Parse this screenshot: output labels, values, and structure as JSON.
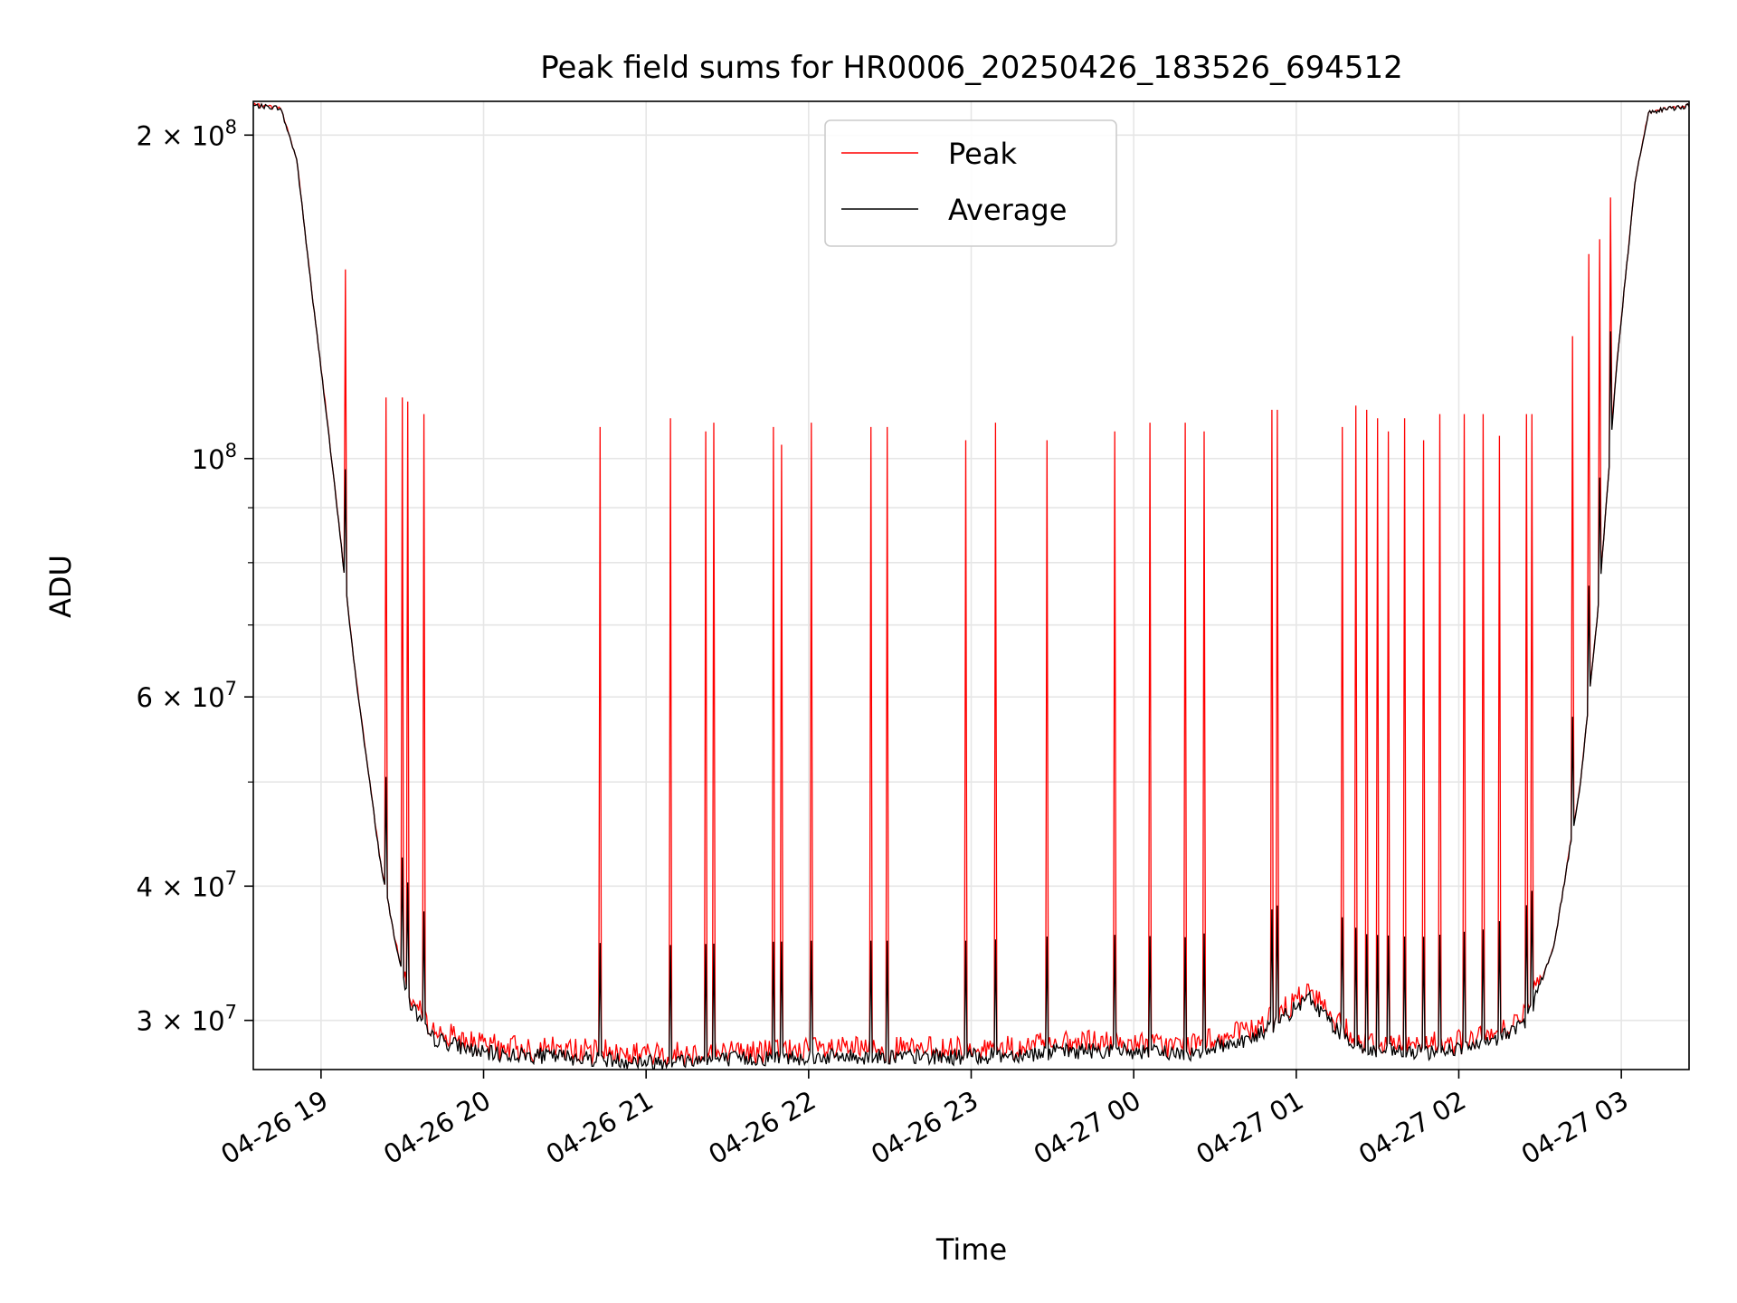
{
  "chart_data": {
    "type": "line",
    "title": "Peak field sums for HR0006_20250426_183526_694512",
    "xlabel": "Time",
    "ylabel": "ADU",
    "yscale": "log",
    "xlim": [
      "2025-04-26 18:35",
      "2025-04-27 03:25"
    ],
    "ylim": [
      27000000,
      215000000
    ],
    "grid": true,
    "legend_position": "top-center",
    "x_ticks": [
      {
        "t": "2025-04-26 19:00",
        "label": "04-26 19"
      },
      {
        "t": "2025-04-26 20:00",
        "label": "04-26 20"
      },
      {
        "t": "2025-04-26 21:00",
        "label": "04-26 21"
      },
      {
        "t": "2025-04-26 22:00",
        "label": "04-26 22"
      },
      {
        "t": "2025-04-26 23:00",
        "label": "04-26 23"
      },
      {
        "t": "2025-04-27 00:00",
        "label": "04-27 00"
      },
      {
        "t": "2025-04-27 01:00",
        "label": "04-27 01"
      },
      {
        "t": "2025-04-27 02:00",
        "label": "04-27 02"
      },
      {
        "t": "2025-04-27 03:00",
        "label": "04-27 03"
      }
    ],
    "y_ticks": [
      {
        "value": 30000000,
        "base": "3 × 10",
        "exp": "7"
      },
      {
        "value": 40000000,
        "base": "4 × 10",
        "exp": "7"
      },
      {
        "value": 60000000,
        "base": "6 × 10",
        "exp": "7"
      },
      {
        "value": 100000000,
        "base": "10",
        "exp": "8"
      },
      {
        "value": 200000000,
        "base": "2 × 10",
        "exp": "8"
      }
    ],
    "y_minor_ticks": [
      50000000,
      70000000,
      80000000,
      90000000
    ],
    "series": [
      {
        "name": "Peak",
        "color": "#ff0000"
      },
      {
        "name": "Average",
        "color": "#000000"
      }
    ],
    "baseline": [
      [
        "2025-04-26 18:35",
        213000000
      ],
      [
        "2025-04-26 18:45",
        212000000
      ],
      [
        "2025-04-26 18:51",
        190000000
      ],
      [
        "2025-04-26 18:57",
        140000000
      ],
      [
        "2025-04-26 19:02",
        110000000
      ],
      [
        "2025-04-26 19:07",
        85000000
      ],
      [
        "2025-04-26 19:12",
        65000000
      ],
      [
        "2025-04-26 19:17",
        52000000
      ],
      [
        "2025-04-26 19:22",
        42000000
      ],
      [
        "2025-04-26 19:27",
        36000000
      ],
      [
        "2025-04-26 19:32",
        31500000
      ],
      [
        "2025-04-26 19:40",
        29000000
      ],
      [
        "2025-04-26 20:00",
        28000000
      ],
      [
        "2025-04-26 20:30",
        27800000
      ],
      [
        "2025-04-26 21:00",
        27500000
      ],
      [
        "2025-04-26 22:00",
        27800000
      ],
      [
        "2025-04-26 23:00",
        27800000
      ],
      [
        "2025-04-26 23:45",
        28200000
      ],
      [
        "2025-04-27 00:20",
        28000000
      ],
      [
        "2025-04-27 00:45",
        29000000
      ],
      [
        "2025-04-27 01:05",
        31500000
      ],
      [
        "2025-04-27 01:15",
        29500000
      ],
      [
        "2025-04-27 01:25",
        28200000
      ],
      [
        "2025-04-27 01:45",
        28000000
      ],
      [
        "2025-04-27 02:10",
        28500000
      ],
      [
        "2025-04-27 02:25",
        30000000
      ],
      [
        "2025-04-27 02:35",
        35000000
      ],
      [
        "2025-04-27 02:45",
        50000000
      ],
      [
        "2025-04-27 02:52",
        75000000
      ],
      [
        "2025-04-27 02:58",
        120000000
      ],
      [
        "2025-04-27 03:05",
        180000000
      ],
      [
        "2025-04-27 03:10",
        210000000
      ],
      [
        "2025-04-27 03:25",
        213000000
      ]
    ],
    "peak_spikes": [
      [
        "2025-04-26 19:09",
        150000000
      ],
      [
        "2025-04-26 19:24",
        114000000
      ],
      [
        "2025-04-26 19:30",
        114000000
      ],
      [
        "2025-04-26 19:32",
        113000000
      ],
      [
        "2025-04-26 19:38",
        110000000
      ],
      [
        "2025-04-26 20:43",
        107000000
      ],
      [
        "2025-04-26 21:09",
        109000000
      ],
      [
        "2025-04-26 21:22",
        106000000
      ],
      [
        "2025-04-26 21:25",
        108000000
      ],
      [
        "2025-04-26 21:47",
        107000000
      ],
      [
        "2025-04-26 21:50",
        103000000
      ],
      [
        "2025-04-26 22:01",
        108000000
      ],
      [
        "2025-04-26 22:23",
        107000000
      ],
      [
        "2025-04-26 22:29",
        107000000
      ],
      [
        "2025-04-26 22:58",
        104000000
      ],
      [
        "2025-04-26 23:09",
        108000000
      ],
      [
        "2025-04-26 23:28",
        104000000
      ],
      [
        "2025-04-26 23:53",
        106000000
      ],
      [
        "2025-04-27 00:06",
        108000000
      ],
      [
        "2025-04-27 00:19",
        108000000
      ],
      [
        "2025-04-27 00:26",
        106000000
      ],
      [
        "2025-04-27 00:51",
        111000000
      ],
      [
        "2025-04-27 00:53",
        111000000
      ],
      [
        "2025-04-27 01:17",
        107000000
      ],
      [
        "2025-04-27 01:22",
        112000000
      ],
      [
        "2025-04-27 01:26",
        111000000
      ],
      [
        "2025-04-27 01:30",
        109000000
      ],
      [
        "2025-04-27 01:34",
        106000000
      ],
      [
        "2025-04-27 01:40",
        109000000
      ],
      [
        "2025-04-27 01:47",
        104000000
      ],
      [
        "2025-04-27 01:53",
        110000000
      ],
      [
        "2025-04-27 02:02",
        110000000
      ],
      [
        "2025-04-27 02:09",
        110000000
      ],
      [
        "2025-04-27 02:15",
        105000000
      ],
      [
        "2025-04-27 02:25",
        110000000
      ],
      [
        "2025-04-27 02:27",
        110000000
      ],
      [
        "2025-04-27 02:42",
        130000000
      ],
      [
        "2025-04-27 02:48",
        155000000
      ],
      [
        "2025-04-27 02:52",
        160000000
      ],
      [
        "2025-04-27 02:56",
        175000000
      ]
    ]
  }
}
